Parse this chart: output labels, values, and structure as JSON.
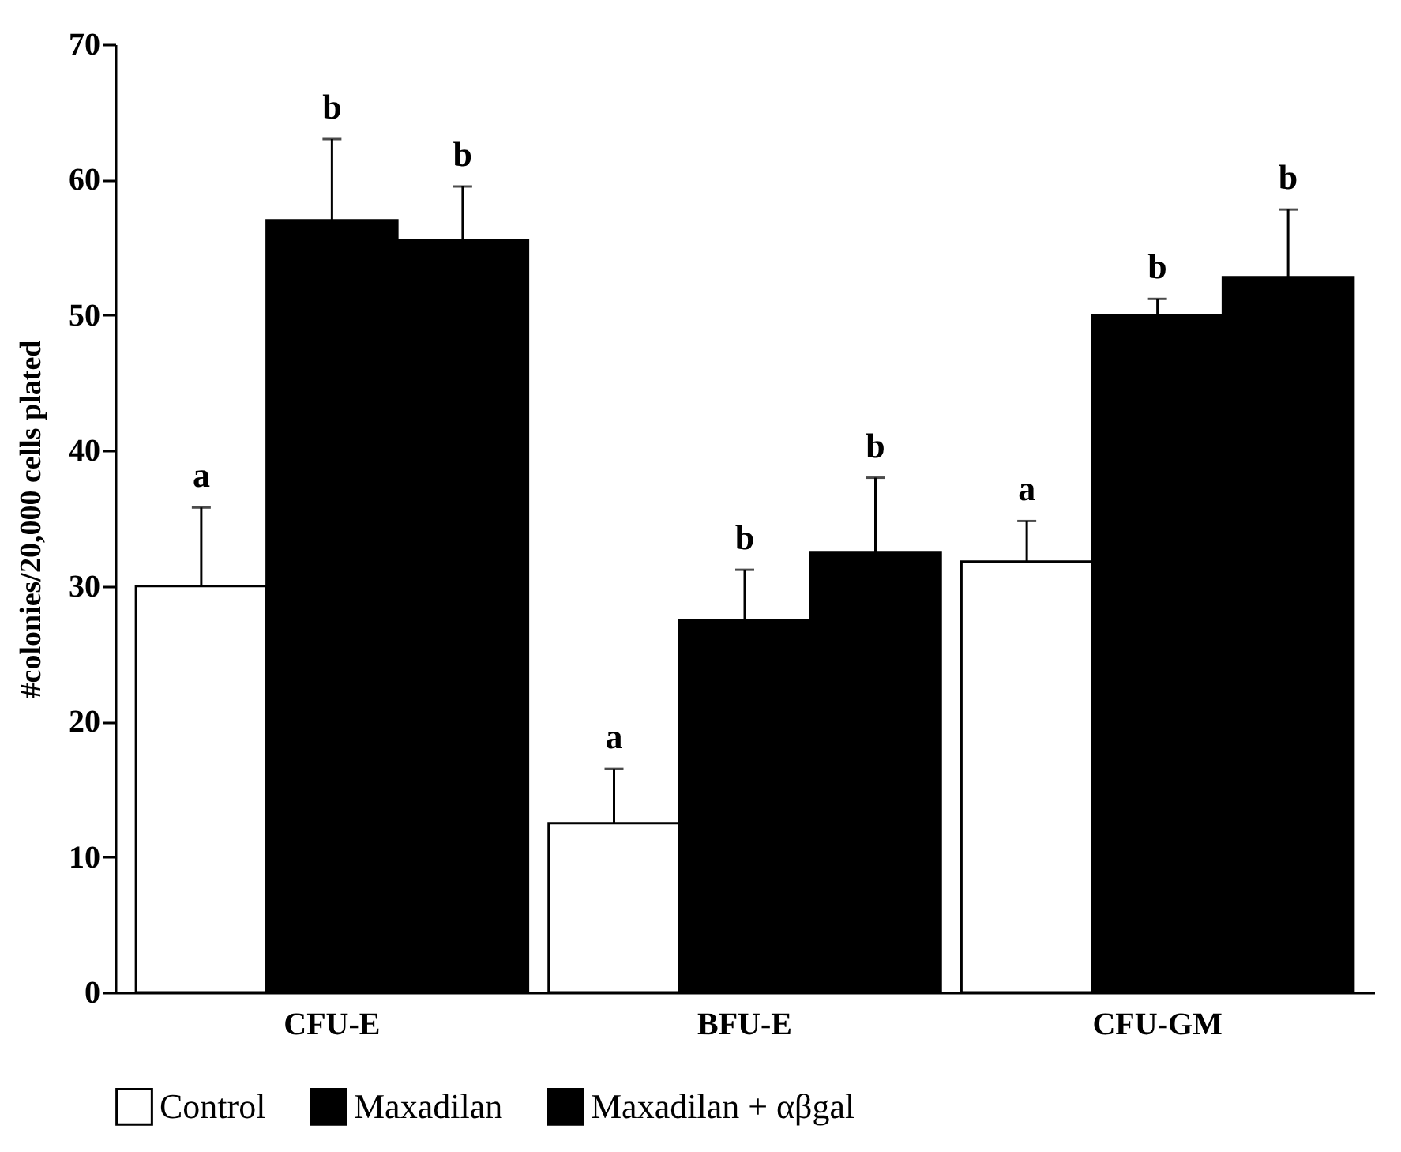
{
  "chart_data": {
    "type": "bar",
    "ylabel": "#colonies/20,000 cells plated",
    "categories": [
      "CFU-E",
      "BFU-E",
      "CFU-GM"
    ],
    "series": [
      {
        "name": "Control",
        "color": "#ffffff",
        "values": [
          30,
          12.5,
          31.8
        ],
        "errors": [
          5.8,
          4,
          3
        ]
      },
      {
        "name": "Maxadilan",
        "color": "#000000",
        "values": [
          57,
          27.5,
          50
        ],
        "errors": [
          6,
          3.7,
          1.2
        ]
      },
      {
        "name": "Maxadilan + αβgal",
        "color": "#000000",
        "values": [
          55.5,
          32.5,
          52.8
        ],
        "errors": [
          4,
          5.5,
          5
        ]
      }
    ],
    "ylim": [
      0,
      70
    ],
    "yticks": [
      0,
      10,
      20,
      30,
      40,
      50,
      60,
      70
    ],
    "grid": false,
    "legend": "bottom",
    "annotations": [
      "a",
      "b",
      "b",
      "a",
      "b",
      "b",
      "a",
      "b",
      "b"
    ]
  }
}
